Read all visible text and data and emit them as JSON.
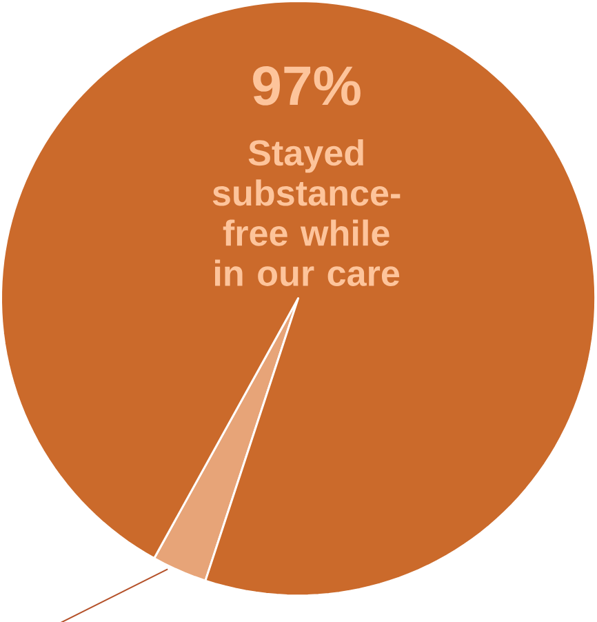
{
  "chart_data": {
    "type": "pie",
    "categories": [
      "Stayed substance-free while in our care",
      null
    ],
    "values": [
      97,
      3
    ],
    "colors": [
      "#cb6a2b",
      "#e7a478"
    ],
    "value_labels": [
      "97%",
      null
    ]
  }
}
